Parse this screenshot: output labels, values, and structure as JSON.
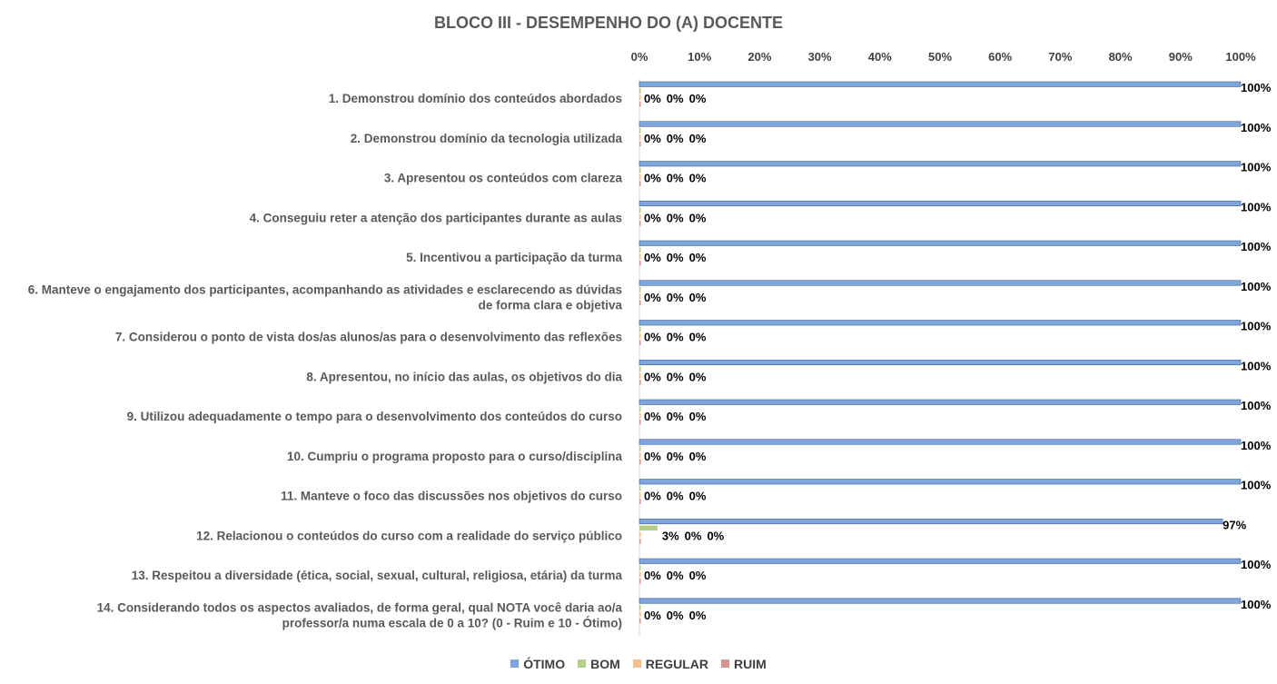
{
  "chart_data": {
    "type": "bar",
    "orientation": "horizontal",
    "title": "BLOCO III - DESEMPENHO DO (A) DOCENTE",
    "xlim": [
      0,
      100
    ],
    "x_ticks": [
      "0%",
      "10%",
      "20%",
      "30%",
      "40%",
      "50%",
      "60%",
      "70%",
      "80%",
      "90%",
      "100%"
    ],
    "x_axis_position": "top",
    "grid": false,
    "legend_position": "bottom",
    "categories": [
      [
        "1. Demonstrou domínio dos conteúdos abordados"
      ],
      [
        "2. Demonstrou domínio da tecnologia utilizada"
      ],
      [
        "3. Apresentou os conteúdos com clareza"
      ],
      [
        "4. Conseguiu reter a atenção dos participantes durante as aulas"
      ],
      [
        "5. Incentivou a participação da turma"
      ],
      [
        "6. Manteve o engajamento dos participantes, acompanhando as atividades e esclarecendo as dúvidas",
        "de forma clara e objetiva"
      ],
      [
        "7. Considerou o ponto de vista dos/as alunos/as para o desenvolvimento das reflexões"
      ],
      [
        "8. Apresentou, no início das aulas, os objetivos do dia"
      ],
      [
        "9. Utilizou adequadamente o tempo para o desenvolvimento dos conteúdos do curso"
      ],
      [
        "10. Cumpriu o programa proposto para o curso/disciplina"
      ],
      [
        "11. Manteve o foco das discussões nos objetivos do curso"
      ],
      [
        "12. Relacionou o conteúdos do curso com a realidade do serviço público"
      ],
      [
        "13. Respeitou a diversidade (ética, social, sexual, cultural, religiosa, etária) da turma"
      ],
      [
        "14. Considerando todos os aspectos avaliados, de forma geral, qual NOTA você daria ao/a",
        "professor/a numa escala de 0 a 10? (0 - Ruim e 10 - Ótimo)"
      ]
    ],
    "series": [
      {
        "name": "ÓTIMO",
        "color": "#7ea6dc",
        "values": [
          100,
          100,
          100,
          100,
          100,
          100,
          100,
          100,
          100,
          100,
          100,
          97,
          100,
          100
        ]
      },
      {
        "name": "BOM",
        "color": "#b3cf88",
        "values": [
          0,
          0,
          0,
          0,
          0,
          0,
          0,
          0,
          0,
          0,
          0,
          3,
          0,
          0
        ]
      },
      {
        "name": "REGULAR",
        "color": "#f8bf8e",
        "values": [
          0,
          0,
          0,
          0,
          0,
          0,
          0,
          0,
          0,
          0,
          0,
          0,
          0,
          0
        ]
      },
      {
        "name": "RUIM",
        "color": "#d69593",
        "values": [
          0,
          0,
          0,
          0,
          0,
          0,
          0,
          0,
          0,
          0,
          0,
          0,
          0,
          0
        ]
      }
    ]
  }
}
